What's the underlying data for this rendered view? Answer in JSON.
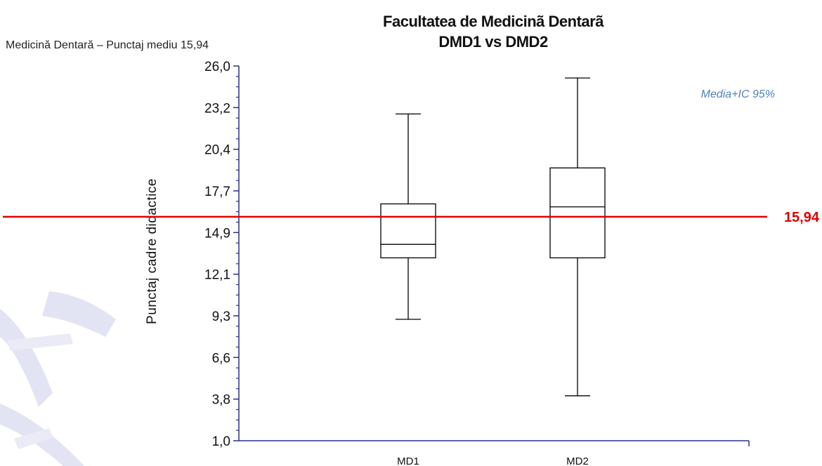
{
  "header": {
    "subtitle_left": "Medicină Dentară – Punctaj mediu 15,94"
  },
  "chart_data": {
    "type": "boxplot",
    "title_line1": "Facultatea de Medicinã  Dentarã",
    "title_line2": "DMD1 vs DMD2",
    "ylabel": "Punctaj cadre didactice",
    "ylim": [
      1.0,
      26.0
    ],
    "yticks": [
      "1,0",
      "3,8",
      "6,6",
      "9,3",
      "12,1",
      "14,9",
      "17,7",
      "20,4",
      "23,2",
      "26,0"
    ],
    "categories": [
      "MD1",
      "MD2"
    ],
    "boxes": [
      {
        "name": "MD1",
        "min": 9.1,
        "q1": 13.2,
        "median": 14.1,
        "q3": 16.8,
        "max": 22.8
      },
      {
        "name": "MD2",
        "min": 4.0,
        "q1": 13.2,
        "median": 16.6,
        "q3": 19.2,
        "max": 25.2
      }
    ],
    "reference_line": {
      "value": 15.94,
      "label": "15,94",
      "color": "#e00000"
    },
    "annotation": {
      "text": "Media+IC 95%",
      "color": "#4f81bd"
    },
    "colors": {
      "axis": "#2e2e8c",
      "box": "#000000"
    }
  }
}
